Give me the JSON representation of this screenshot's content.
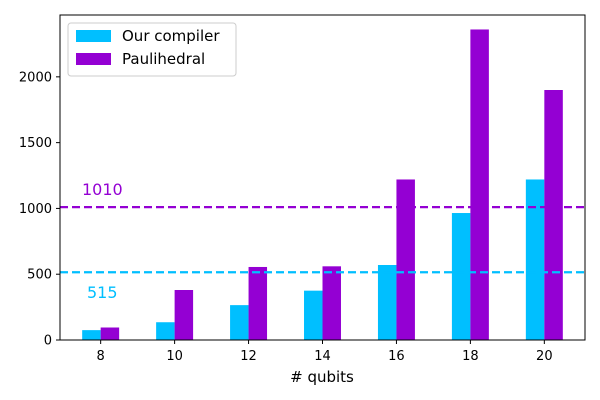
{
  "chart_data": {
    "type": "bar",
    "categories": [
      "8",
      "10",
      "12",
      "14",
      "16",
      "18",
      "20"
    ],
    "series": [
      {
        "name": "Our compiler",
        "color": "#00BFFF",
        "values": [
          75,
          135,
          265,
          375,
          570,
          965,
          1220
        ]
      },
      {
        "name": "Paulihedral",
        "color": "#9400D3",
        "values": [
          95,
          380,
          555,
          560,
          1220,
          2360,
          1900
        ]
      }
    ],
    "reference_lines": [
      {
        "value": 1010,
        "label": "1010",
        "color": "#9400D3",
        "style": "dashed"
      },
      {
        "value": 515,
        "label": "515",
        "color": "#00BFFF",
        "style": "dashed"
      }
    ],
    "xlabel": "# qubits",
    "ylabel": "",
    "ylim": [
      0,
      2470
    ],
    "yticks": [
      0,
      500,
      1000,
      1500,
      2000
    ],
    "legend_position": "top-left",
    "grid": false
  }
}
